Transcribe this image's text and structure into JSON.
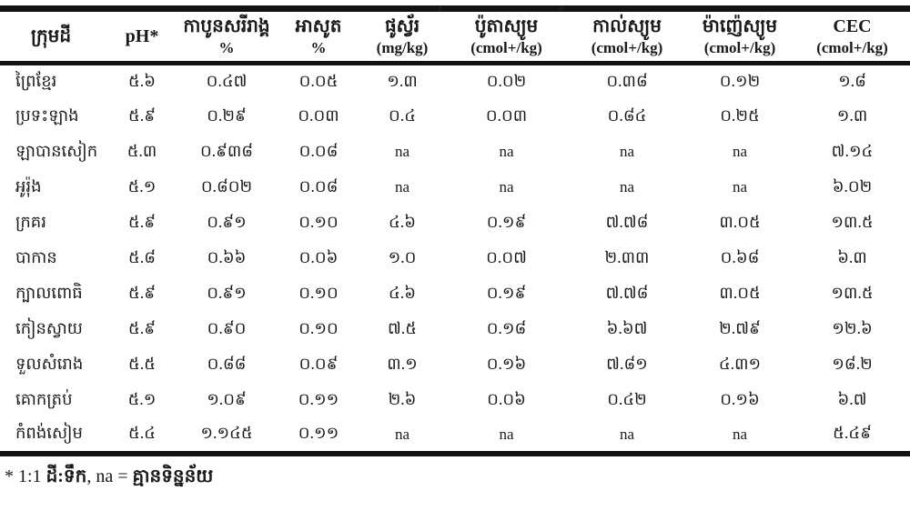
{
  "table": {
    "columns": [
      {
        "label": "ក្រុមដី",
        "unit": ""
      },
      {
        "label": "pH*",
        "unit": ""
      },
      {
        "label": "កាបូនសរីរាង្គ",
        "unit": "%"
      },
      {
        "label": "អាសូត",
        "unit": "%"
      },
      {
        "label": "ផូស្វ័រ",
        "unit": "(mg/kg)"
      },
      {
        "label": "ប៉ូតាស្យូម",
        "unit": "(cmol+/kg)"
      },
      {
        "label": "កាល់ស្យូម",
        "unit": "(cmol+/kg)"
      },
      {
        "label": "ម៉ាញ៉េស្យូម",
        "unit": "(cmol+/kg)"
      },
      {
        "label": "CEC",
        "unit": "(cmol+/kg)"
      }
    ],
    "rows": [
      {
        "group": "ព្រៃខ្មែរ",
        "values": [
          "៥.៦",
          "០.៤៧",
          "០.០៥",
          "១.៣",
          "០.០២",
          "០.៣៨",
          "០.១២",
          "១.៨"
        ]
      },
      {
        "group": "ប្រទះឡាង",
        "values": [
          "៥.៩",
          "០.២៩",
          "០.០៣",
          "០.៤",
          "០.០៣",
          "០.៨៤",
          "០.២៥",
          "១.៣"
        ]
      },
      {
        "group": "ឡាបានសៀក",
        "values": [
          "៥.៣",
          "០.៩៣៨",
          "០.០៨",
          "na",
          "na",
          "na",
          "na",
          "៧.១៤"
        ]
      },
      {
        "group": "អូរ៉ុង",
        "values": [
          "៥.១",
          "០.៨០២",
          "០.០៨",
          "na",
          "na",
          "na",
          "na",
          "៦.០២"
        ]
      },
      {
        "group": "ក្រគរ",
        "values": [
          "៥.៩",
          "០.៩១",
          "០.១០",
          "៤.៦",
          "០.១៩",
          "៧.៧៨",
          "៣.០៥",
          "១៣.៥"
        ]
      },
      {
        "group": "បាកាន",
        "values": [
          "៥.៨",
          "០.៦៦",
          "០.០៦",
          "១.០",
          "០.០៧",
          "២.៣៣",
          "០.៦៨",
          "៦.៣"
        ]
      },
      {
        "group": "ក្បាលពោធិ",
        "values": [
          "៥.៩",
          "០.៩១",
          "០.១០",
          "៤.៦",
          "០.១៩",
          "៧.៧៨",
          "៣.០៥",
          "១៣.៥"
        ]
      },
      {
        "group": "កៀនស្វាយ",
        "values": [
          "៥.៩",
          "០.៩០",
          "០.១០",
          "៧.៥",
          "០.១៨",
          "៦.៦៧",
          "២.៧៩",
          "១២.៦"
        ]
      },
      {
        "group": "ទួលសំរោង",
        "values": [
          "៥.៥",
          "០.៨៨",
          "០.០៩",
          "៣.១",
          "០.១៦",
          "៧.៨១",
          "៤.៣១",
          "១៨.២"
        ]
      },
      {
        "group": "គោកត្រប់",
        "values": [
          "៥.១",
          "១.០៩",
          "០.១១",
          "២.៦",
          "០.០៦",
          "០.៤២",
          "០.១៦",
          "៦.៧"
        ]
      },
      {
        "group": "កំពង់សៀម",
        "values": [
          "៥.៤",
          "១.១៤៥",
          "០.១១",
          "na",
          "na",
          "na",
          "na",
          "៥.៤៩"
        ]
      }
    ]
  },
  "footnote": {
    "prefix": "* 1:1 ",
    "soil_water": "ដី:ទឹក",
    "middle": ", na = ",
    "no_data": "គ្មានទិន្នន័យ"
  }
}
